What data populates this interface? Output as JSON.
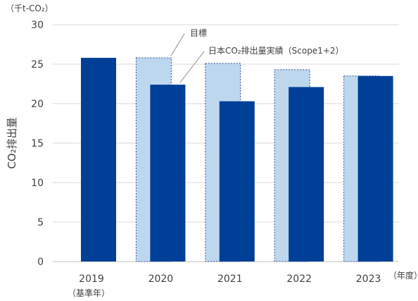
{
  "chart_data": {
    "type": "bar",
    "unit_label": "（千t-CO₂）",
    "ylabel": "CO₂排出量",
    "xunit_label": "（年度）",
    "categories": [
      "2019",
      "2020",
      "2021",
      "2022",
      "2023"
    ],
    "category_notes": [
      "（基準年）",
      "",
      "",
      "",
      ""
    ],
    "ylim": [
      0,
      30
    ],
    "yticks": [
      0,
      5,
      10,
      15,
      20,
      25,
      30
    ],
    "grid": true,
    "series": [
      {
        "name": "目標",
        "values": [
          null,
          25.8,
          25.1,
          24.3,
          23.5
        ],
        "color": "#bdd7ee",
        "border": "#2f5597"
      },
      {
        "name": "日本CO₂排出量実績（Scope1+2）",
        "values": [
          25.8,
          22.4,
          20.3,
          22.1,
          23.5
        ],
        "color": "#003f98"
      }
    ]
  }
}
